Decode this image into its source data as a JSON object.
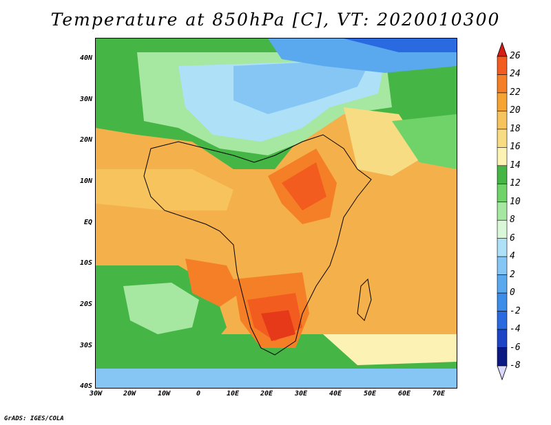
{
  "title": "Temperature at 850hPa [C], VT: 2020010300",
  "credit": "GrADS: IGES/COLA",
  "map": {
    "lat_labels": [
      "40N",
      "30N",
      "20N",
      "10N",
      "EQ",
      "10S",
      "20S",
      "30S",
      "40S"
    ],
    "lon_labels": [
      "30W",
      "20W",
      "10W",
      "0",
      "10E",
      "20E",
      "30E",
      "40E",
      "50E",
      "60E",
      "70E"
    ],
    "lat_range": [
      -40,
      45
    ],
    "lon_range": [
      -30,
      75
    ],
    "region": "Africa"
  },
  "colorbar": {
    "levels": [
      "26",
      "24",
      "22",
      "20",
      "18",
      "16",
      "14",
      "12",
      "10",
      "8",
      "6",
      "4",
      "2",
      "0",
      "-2",
      "-4",
      "-6",
      "-8"
    ],
    "colors": [
      "#e6391a",
      "#f25c1f",
      "#f57f27",
      "#f5a433",
      "#f7c35c",
      "#f8dc84",
      "#fbf2b3",
      "#45b545",
      "#6fd36a",
      "#a6e8a1",
      "#d8f8d8",
      "#aee0f8",
      "#86c6f4",
      "#5aa9ee",
      "#3c8cea",
      "#2a6ae0",
      "#1d44c4",
      "#0b1a82",
      "#dcd9ff"
    ],
    "top_arrow_color": "#d21e14",
    "bottom_arrow_color": "#dcd9ff"
  }
}
